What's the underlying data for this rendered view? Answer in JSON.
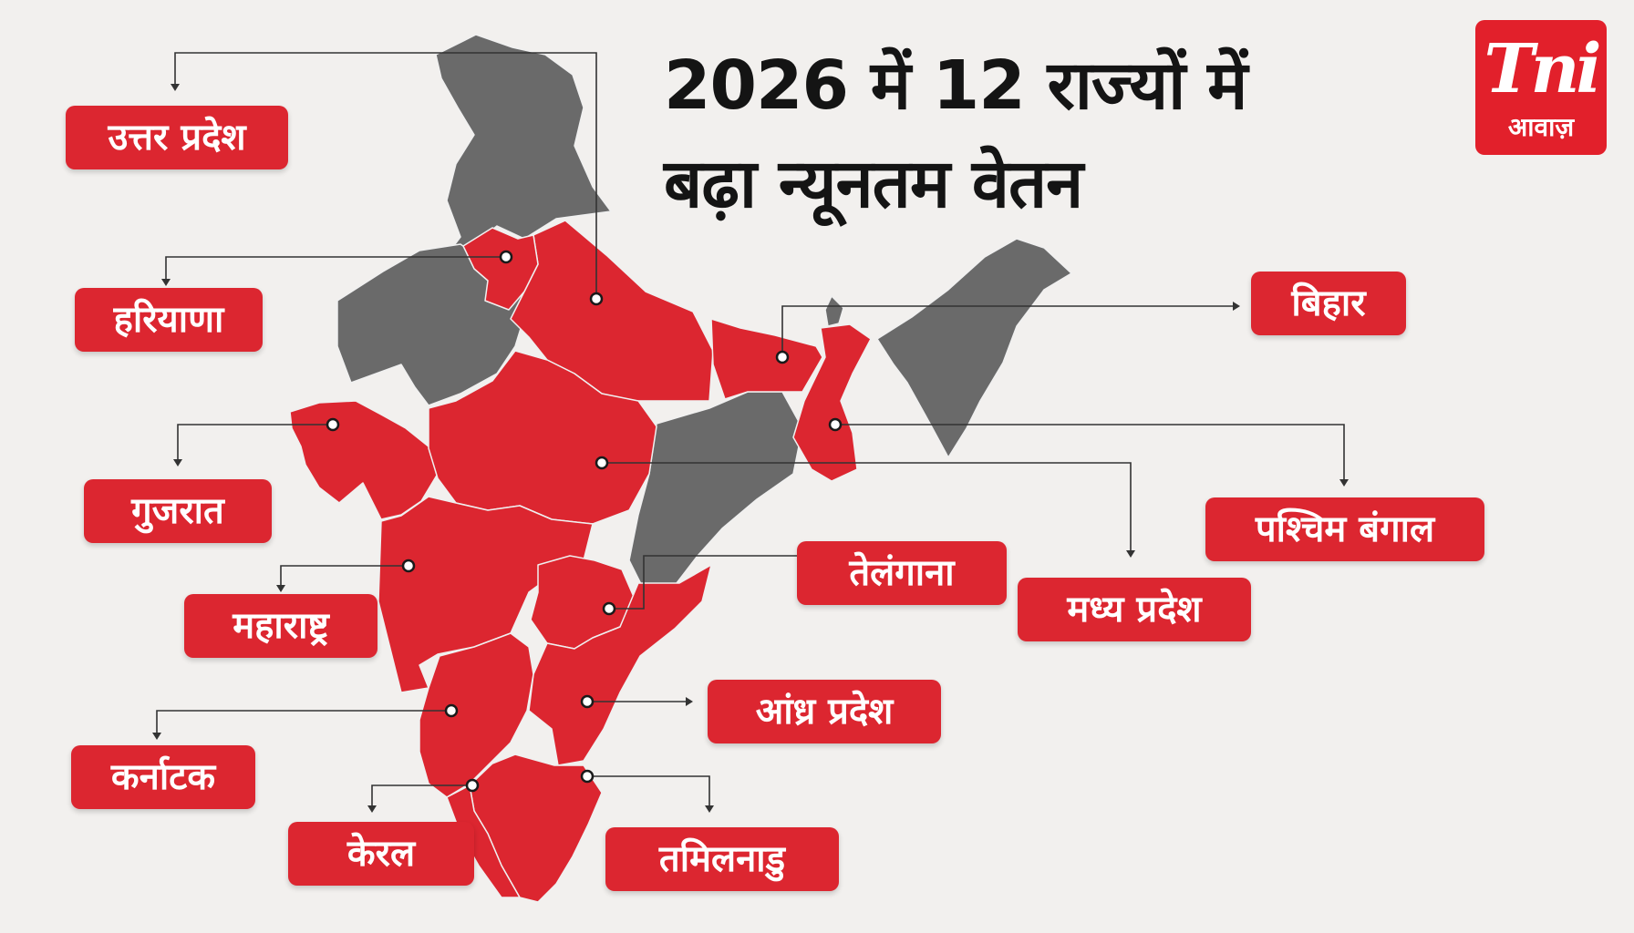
{
  "title": {
    "line1": "2026 में 12 राज्यों में",
    "line2": "बढ़ा न्यूनतम वेतन"
  },
  "logo": {
    "mark": "Tni",
    "sub": "आवाज़"
  },
  "colors": {
    "highlight": "#dc2630",
    "other_states": "#6a6a6a",
    "background": "#f2f0ee",
    "title": "#141414"
  },
  "states": [
    {
      "id": "up",
      "name": "उत्तर प्रदेश",
      "highlighted": true
    },
    {
      "id": "haryana",
      "name": "हरियाणा",
      "highlighted": true
    },
    {
      "id": "gujarat",
      "name": "गुजरात",
      "highlighted": true
    },
    {
      "id": "maharashtra",
      "name": "महाराष्ट्र",
      "highlighted": true
    },
    {
      "id": "karnataka",
      "name": "कर्नाटक",
      "highlighted": true
    },
    {
      "id": "kerala",
      "name": "केरल",
      "highlighted": true
    },
    {
      "id": "tamilnadu",
      "name": "तमिलनाडु",
      "highlighted": true
    },
    {
      "id": "andhra",
      "name": "आंध्र प्रदेश",
      "highlighted": true
    },
    {
      "id": "telangana",
      "name": "तेलंगाना",
      "highlighted": true
    },
    {
      "id": "mp",
      "name": "मध्य प्रदेश",
      "highlighted": true
    },
    {
      "id": "wb",
      "name": "पश्चिम बंगाल",
      "highlighted": true
    },
    {
      "id": "bihar",
      "name": "बिहार",
      "highlighted": true
    }
  ]
}
